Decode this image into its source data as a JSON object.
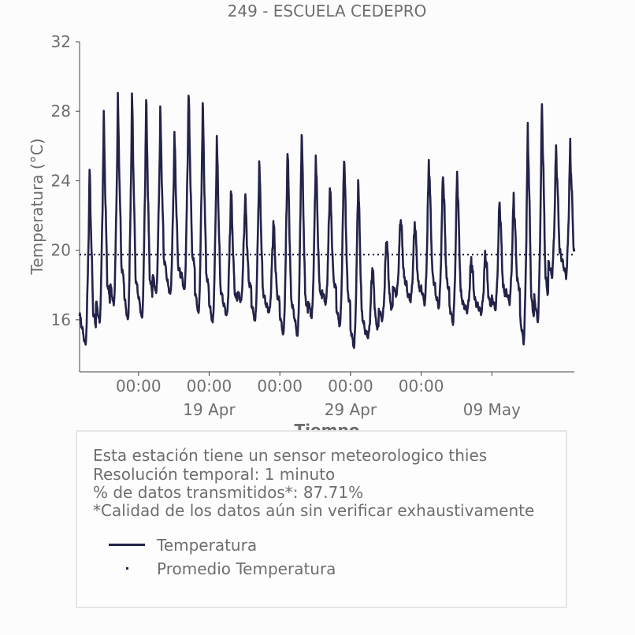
{
  "chart_data": {
    "type": "line",
    "title": "249 - ESCUELA CEDEPRO",
    "xlabel": "Tiempo",
    "ylabel": "Temperatura (°C)",
    "ylim": [
      13,
      32
    ],
    "yticks": [
      "16",
      "20",
      "24",
      "28",
      "32"
    ],
    "xlim": [
      "2021-04-09T20:00",
      "2021-05-14T20:00"
    ],
    "xtick_time_labels": [
      "00:00",
      "00:00",
      "00:00",
      "00:00",
      "00:00"
    ],
    "xtick_date_labels": [
      "19 Apr",
      "29 Apr",
      "09 May"
    ],
    "grid": false,
    "series": [
      {
        "name": "Temperatura",
        "color": "#23234a",
        "style": "solid",
        "daily_extremes": [
          {
            "day": "2021-04-10",
            "min": 14.5,
            "max": 24.5
          },
          {
            "day": "2021-04-11",
            "min": 15.8,
            "max": 27.6
          },
          {
            "day": "2021-04-12",
            "min": 16.8,
            "max": 28.5
          },
          {
            "day": "2021-04-13",
            "min": 15.9,
            "max": 28.9
          },
          {
            "day": "2021-04-14",
            "min": 16.0,
            "max": 28.6
          },
          {
            "day": "2021-04-15",
            "min": 17.5,
            "max": 27.9
          },
          {
            "day": "2021-04-16",
            "min": 17.4,
            "max": 26.6
          },
          {
            "day": "2021-04-17",
            "min": 17.6,
            "max": 29.1
          },
          {
            "day": "2021-04-18",
            "min": 16.3,
            "max": 28.5
          },
          {
            "day": "2021-04-19",
            "min": 15.8,
            "max": 26.4
          },
          {
            "day": "2021-04-20",
            "min": 16.2,
            "max": 23.6
          },
          {
            "day": "2021-04-21",
            "min": 17.0,
            "max": 23.3
          },
          {
            "day": "2021-04-22",
            "min": 15.9,
            "max": 25.2
          },
          {
            "day": "2021-04-23",
            "min": 16.4,
            "max": 21.8
          },
          {
            "day": "2021-04-24",
            "min": 15.1,
            "max": 26.1
          },
          {
            "day": "2021-04-25",
            "min": 15.0,
            "max": 27.1
          },
          {
            "day": "2021-04-26",
            "min": 16.1,
            "max": 25.6
          },
          {
            "day": "2021-04-27",
            "min": 16.9,
            "max": 24.0
          },
          {
            "day": "2021-04-28",
            "min": 15.6,
            "max": 25.8
          },
          {
            "day": "2021-04-29",
            "min": 14.4,
            "max": 24.4
          },
          {
            "day": "2021-04-30",
            "min": 15.0,
            "max": 19.2
          },
          {
            "day": "2021-05-01",
            "min": 16.0,
            "max": 21.0
          },
          {
            "day": "2021-05-02",
            "min": 17.4,
            "max": 22.2
          },
          {
            "day": "2021-05-03",
            "min": 17.1,
            "max": 21.8
          },
          {
            "day": "2021-05-04",
            "min": 16.9,
            "max": 25.5
          },
          {
            "day": "2021-05-05",
            "min": 16.7,
            "max": 24.8
          },
          {
            "day": "2021-05-06",
            "min": 15.8,
            "max": 24.8
          },
          {
            "day": "2021-05-07",
            "min": 16.5,
            "max": 19.6
          },
          {
            "day": "2021-05-08",
            "min": 16.4,
            "max": 20.0
          },
          {
            "day": "2021-05-09",
            "min": 16.6,
            "max": 23.1
          },
          {
            "day": "2021-05-10",
            "min": 17.0,
            "max": 23.2
          },
          {
            "day": "2021-05-11",
            "min": 14.7,
            "max": 27.2
          },
          {
            "day": "2021-05-12",
            "min": 15.9,
            "max": 28.6
          },
          {
            "day": "2021-05-13",
            "min": 18.5,
            "max": 26.0
          }
        ]
      },
      {
        "name": "Promedio Temperatura",
        "color": "#23234a",
        "style": "dotted",
        "value": 19.75
      }
    ]
  },
  "info": {
    "line1": "Esta estación tiene un sensor meteorologico thies",
    "line2": "Resolución temporal: 1 minuto",
    "line3": "% de datos transmitidos*: 87.71%",
    "line4": "*Calidad de los datos aún sin verificar exhaustivamente"
  },
  "legend": {
    "series1": "Temperatura",
    "series2": "Promedio Temperatura"
  }
}
